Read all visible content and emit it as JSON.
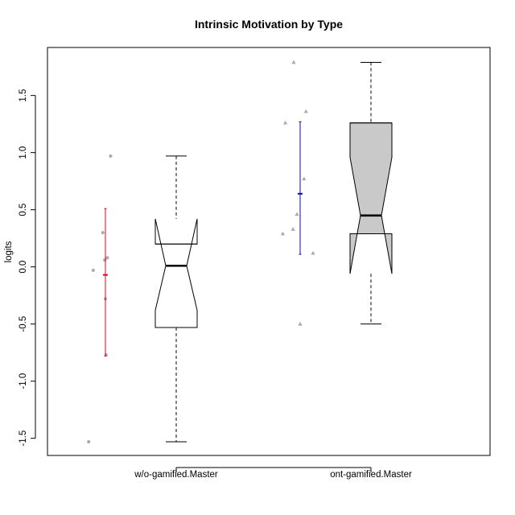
{
  "chart_data": {
    "type": "box",
    "title": "Intrinsic Motivation by Type",
    "xlabel": "",
    "ylabel": "logits",
    "ylim": [
      -1.65,
      1.92
    ],
    "y_ticks": [
      -1.5,
      -1.0,
      -0.5,
      0.0,
      0.5,
      1.0,
      1.5
    ],
    "y_tick_labels": [
      "-1.5",
      "-1.0",
      "-0.5",
      "0.0",
      "0.5",
      "1.0",
      "1.5"
    ],
    "categories": [
      "w/o-gamified.Master",
      "ont-gamified.Master"
    ],
    "boxes": [
      {
        "name": "w/o-gamified.Master",
        "whisker_low": -1.53,
        "q1": -0.53,
        "median": 0.01,
        "q3": 0.2,
        "whisker_high": 0.97,
        "notch_low": -0.38,
        "notch_high": 0.42,
        "fill": "#ffffff",
        "points": [
          {
            "x": -0.02,
            "y": -1.53
          },
          {
            "x": 0.66,
            "y": 0.97
          },
          {
            "x": 0.42,
            "y": 0.3
          },
          {
            "x": 0.56,
            "y": 0.08
          },
          {
            "x": 0.48,
            "y": 0.06
          },
          {
            "x": 0.12,
            "y": -0.03
          },
          {
            "x": 0.5,
            "y": -0.28
          },
          {
            "x": 0.52,
            "y": -0.77
          }
        ],
        "point_shape": "circle",
        "mean": -0.07,
        "ci_low": -0.78,
        "ci_high": 0.51,
        "ci_color": "#e3001b"
      },
      {
        "name": "ont-gamified.Master",
        "whisker_low": -0.5,
        "q1": 0.29,
        "median": 0.45,
        "q3": 1.26,
        "whisker_high": 1.79,
        "notch_low": -0.06,
        "notch_high": 0.96,
        "fill": "#c9c9c9",
        "points": [
          {
            "x": 0.3,
            "y": 1.79
          },
          {
            "x": 0.68,
            "y": 1.36
          },
          {
            "x": 0.04,
            "y": 1.26
          },
          {
            "x": 0.62,
            "y": 0.77
          },
          {
            "x": 0.4,
            "y": 0.46
          },
          {
            "x": 0.28,
            "y": 0.33
          },
          {
            "x": -0.04,
            "y": 0.29
          },
          {
            "x": 0.9,
            "y": 0.12
          },
          {
            "x": 0.5,
            "y": -0.5
          }
        ],
        "point_shape": "triangle",
        "mean": 0.64,
        "ci_low": 0.11,
        "ci_high": 1.27,
        "ci_color": "#0a0ab4"
      }
    ],
    "grid": false,
    "legend": "none",
    "point_color": "#aaaaaa",
    "whisker_style": "dashed"
  }
}
